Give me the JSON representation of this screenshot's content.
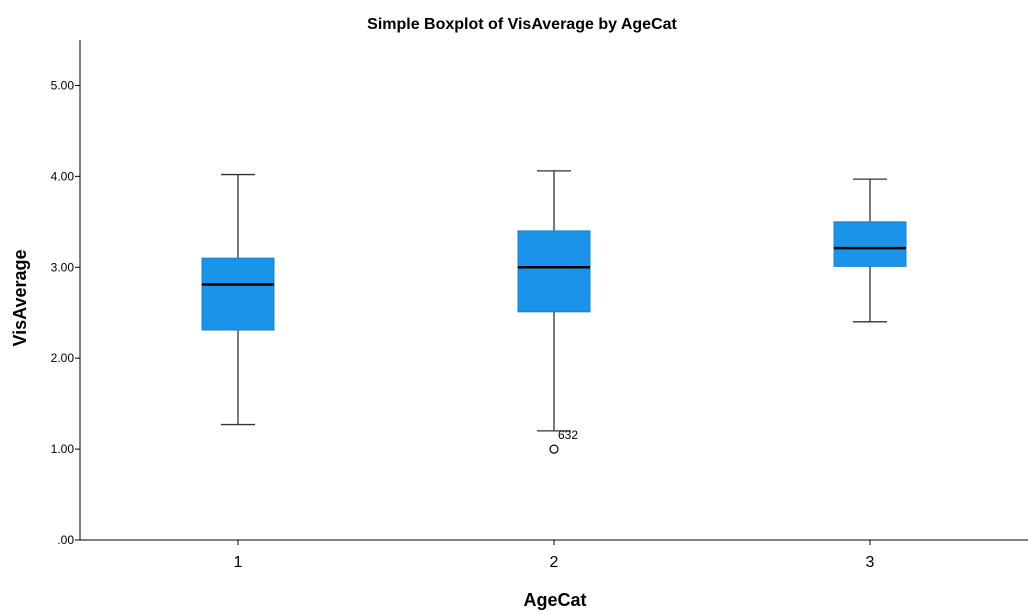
{
  "chart_data": {
    "type": "boxplot",
    "title": "Simple Boxplot of VisAverage by AgeCat",
    "xlabel": "AgeCat",
    "ylabel": "VisAverage",
    "ylim": [
      0,
      5.5
    ],
    "yticks": [
      0,
      1,
      2,
      3,
      4,
      5
    ],
    "ytick_labels": [
      ".00",
      "1.00",
      "2.00",
      "3.00",
      "4.00",
      "5.00"
    ],
    "categories": [
      "1",
      "2",
      "3"
    ],
    "boxes": [
      {
        "category": "1",
        "whisker_low": 1.27,
        "q1": 2.31,
        "median": 2.81,
        "q3": 3.1,
        "whisker_high": 4.02,
        "outliers": []
      },
      {
        "category": "2",
        "whisker_low": 1.2,
        "q1": 2.51,
        "median": 3.0,
        "q3": 3.4,
        "whisker_high": 4.06,
        "outliers": [
          {
            "value": 1.0,
            "label": "632"
          }
        ]
      },
      {
        "category": "3",
        "whisker_low": 2.4,
        "q1": 3.01,
        "median": 3.21,
        "q3": 3.5,
        "whisker_high": 3.97,
        "outliers": []
      }
    ],
    "box_color": "#1a94e8",
    "median_color": "#000000",
    "grid": false,
    "legend": "none"
  }
}
